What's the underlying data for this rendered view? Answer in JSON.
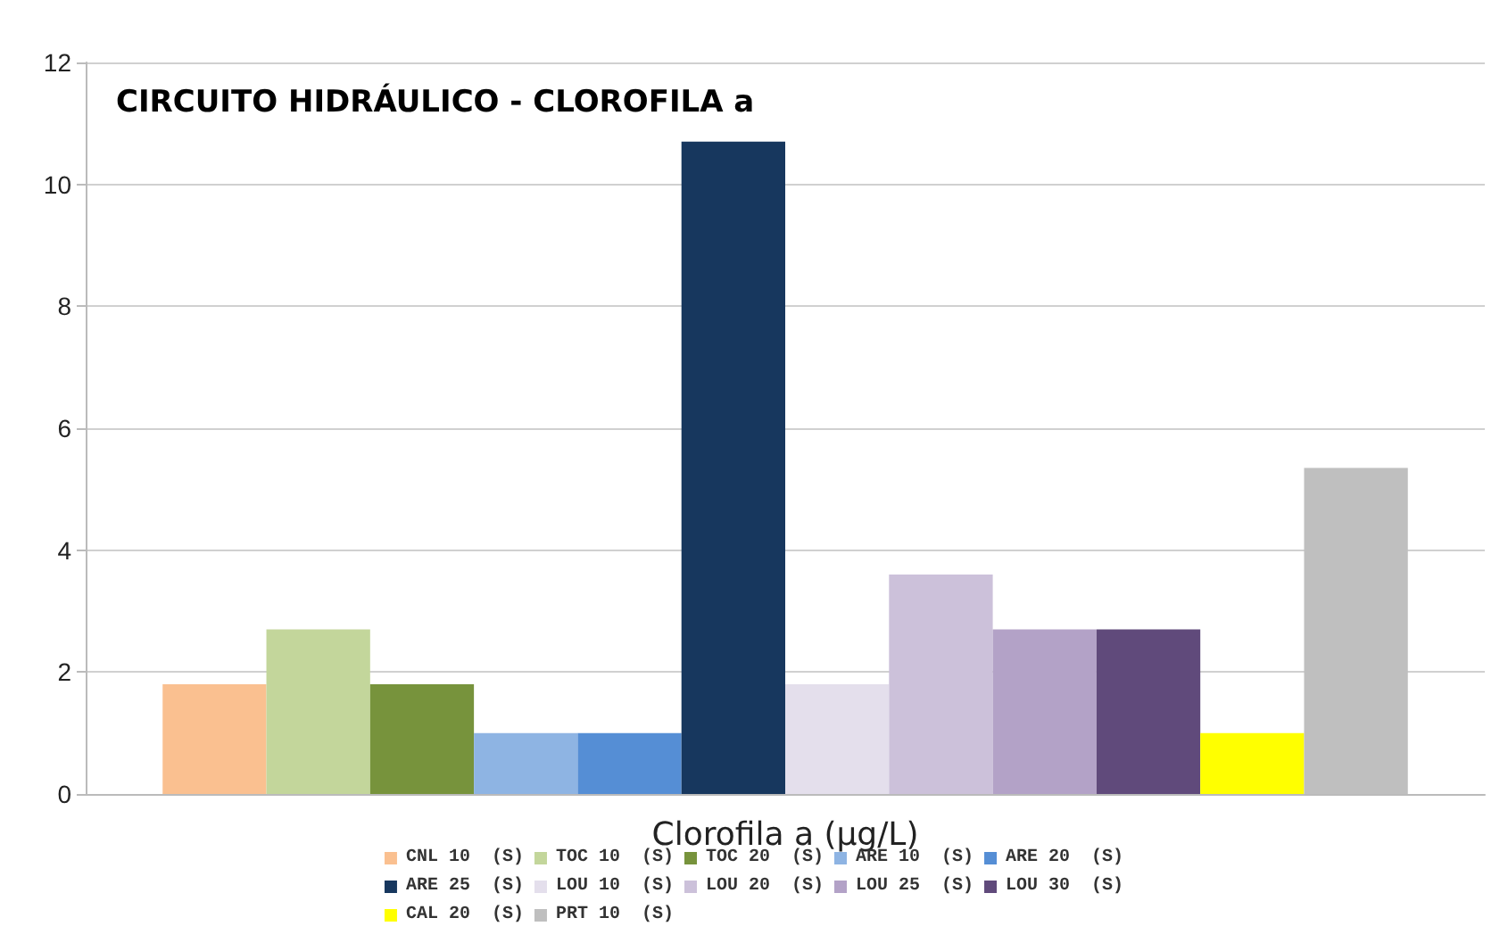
{
  "chart_data": {
    "type": "bar",
    "title": "CIRCUITO HIDRÁULICO - CLOROFILA a",
    "categories": [
      "Clorofila a (µg/L)"
    ],
    "series": [
      {
        "name": "CNL 10  (S)",
        "color": "#fac090",
        "values": [
          1.8
        ]
      },
      {
        "name": "TOC 10  (S)",
        "color": "#c3d69b",
        "values": [
          2.7
        ]
      },
      {
        "name": "TOC 20  (S)",
        "color": "#77933c",
        "values": [
          1.8
        ]
      },
      {
        "name": "ARE 10  (S)",
        "color": "#8eb4e3",
        "values": [
          1.0
        ]
      },
      {
        "name": "ARE 20  (S)",
        "color": "#558ed5",
        "values": [
          1.0
        ]
      },
      {
        "name": "ARE 25  (S)",
        "color": "#17375e",
        "values": [
          10.7
        ]
      },
      {
        "name": "LOU 10  (S)",
        "color": "#e4dfec",
        "values": [
          1.8
        ]
      },
      {
        "name": "LOU 20  (S)",
        "color": "#ccc1da",
        "values": [
          3.6
        ]
      },
      {
        "name": "LOU 25  (S)",
        "color": "#b3a2c7",
        "values": [
          2.7
        ]
      },
      {
        "name": "LOU 30  (S)",
        "color": "#604a7b",
        "values": [
          2.7
        ]
      },
      {
        "name": "CAL 20  (S)",
        "color": "#ffff00",
        "values": [
          1.0
        ]
      },
      {
        "name": "PRT 10  (S)",
        "color": "#bfbfbf",
        "values": [
          5.35
        ]
      }
    ],
    "ylim": [
      0,
      12
    ],
    "yticks": [
      0,
      2,
      4,
      6,
      8,
      10,
      12
    ],
    "grid": "y",
    "legend": "bottom"
  }
}
